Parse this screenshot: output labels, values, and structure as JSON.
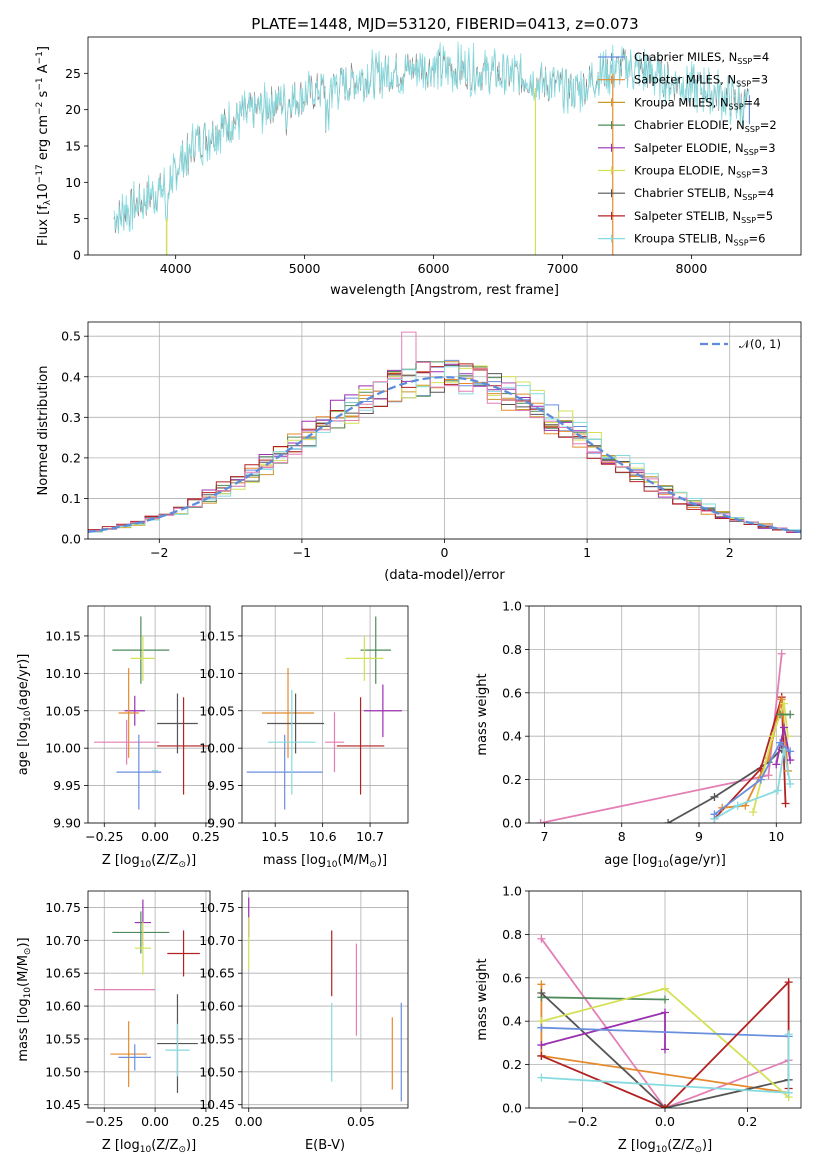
{
  "title": "PLATE=1448, MJD=53120, FIBERID=0413, z=0.073",
  "palette": {
    "Chabrier MILES": "#6a8fdd",
    "Salpeter MILES": "#e58a2d",
    "Kroupa MILES": "#c9982f",
    "Chabrier ELODIE": "#4f8a5b",
    "Salpeter ELODIE": "#9b30b0",
    "Kroupa ELODIE": "#d4e157",
    "Chabrier STELIB": "#555555",
    "Salpeter STELIB": "#b22222",
    "Kroupa STELIB": "#86dbe0",
    "extra_pink": "#e37fb5",
    "reference": "#5b8ddb"
  },
  "chart_data": [
    {
      "type": "line",
      "title": "PLATE=1448, MJD=53120, FIBERID=0413, z=0.073",
      "xlabel": "wavelength [Angstrom, rest frame]",
      "ylabel_parts": [
        "Flux [f",
        "λ",
        "10",
        "−17",
        " erg cm",
        "−2",
        " s",
        "−1",
        " A",
        "−1",
        "]"
      ],
      "xlim": [
        3320,
        8850
      ],
      "ylim": [
        0,
        30
      ],
      "xticks": [
        "4000",
        "5000",
        "6000",
        "7000",
        "8000"
      ],
      "yticks": [
        "0",
        "5",
        "10",
        "15",
        "20",
        "25"
      ],
      "legend_position": "upper right",
      "legend": [
        {
          "base": "Chabrier MILES, N",
          "sub": "SSP",
          "val": "=4"
        },
        {
          "base": "Salpeter MILES, N",
          "sub": "SSP",
          "val": "=3"
        },
        {
          "base": "Kroupa MILES, N",
          "sub": "SSP",
          "val": "=4"
        },
        {
          "base": "Chabrier ELODIE, N",
          "sub": "SSP",
          "val": "=2"
        },
        {
          "base": "Salpeter ELODIE, N",
          "sub": "SSP",
          "val": "=3"
        },
        {
          "base": "Kroupa ELODIE, N",
          "sub": "SSP",
          "val": "=3"
        },
        {
          "base": "Chabrier STELIB, N",
          "sub": "SSP",
          "val": "=4"
        },
        {
          "base": "Salpeter STELIB, N",
          "sub": "SSP",
          "val": "=5"
        },
        {
          "base": "Kroupa STELIB, N",
          "sub": "SSP",
          "val": "=6"
        }
      ],
      "spectrum_continuum": [
        [
          3520,
          5
        ],
        [
          3700,
          7
        ],
        [
          3900,
          9
        ],
        [
          4000,
          12
        ],
        [
          4150,
          15.5
        ],
        [
          4300,
          17
        ],
        [
          4500,
          19
        ],
        [
          4700,
          20.5
        ],
        [
          4900,
          21.5
        ],
        [
          5100,
          22.5
        ],
        [
          5300,
          23.5
        ],
        [
          5500,
          24.5
        ],
        [
          5700,
          25.3
        ],
        [
          5900,
          25.8
        ],
        [
          6100,
          25.7
        ],
        [
          6300,
          25.4
        ],
        [
          6500,
          25.0
        ],
        [
          6700,
          24.4
        ],
        [
          6900,
          23.5
        ],
        [
          7100,
          22.5
        ],
        [
          7300,
          25.0
        ],
        [
          7500,
          26.0
        ],
        [
          7700,
          25.0
        ],
        [
          7900,
          23.5
        ],
        [
          8100,
          22.8
        ],
        [
          8300,
          21.5
        ],
        [
          8450,
          20.5
        ]
      ]
    },
    {
      "type": "area",
      "xlabel": "(data-model)/error",
      "ylabel": "Normed distribution",
      "xlim": [
        -2.5,
        2.5
      ],
      "ylim": [
        0,
        0.535
      ],
      "xticks": [
        "−2",
        "−1",
        "0",
        "1",
        "2"
      ],
      "yticks": [
        "0.0",
        "0.1",
        "0.2",
        "0.3",
        "0.4",
        "0.5"
      ],
      "legend": "𝒩(0, 1)",
      "legend_position": "upper right",
      "bin_width": 0.1
    },
    {
      "type": "scatter",
      "xlabel": "Z [log10(Z/Z⊙)]",
      "xlabel_parts": [
        "Z [log",
        "10",
        "(Z/Z",
        "⊙",
        ")]"
      ],
      "ylabel_parts": [
        "age  [log",
        "10",
        "(age/yr)]"
      ],
      "xlim": [
        -0.33,
        0.27
      ],
      "ylim": [
        9.9,
        10.19
      ],
      "xticks": [
        -0.25,
        0.0,
        0.25
      ],
      "xticklabels": [
        "−0.25",
        "0.00",
        "0.25"
      ],
      "yticks": [
        9.9,
        9.95,
        10.0,
        10.05,
        10.1,
        10.15
      ],
      "yticklabels": [
        "9.90",
        "9.95",
        "10.00",
        "10.05",
        "10.10",
        "10.15"
      ],
      "points": [
        {
          "c": "Chabrier ELODIE",
          "x": -0.07,
          "y": 10.131,
          "xe": 0.14,
          "ye": 0.045
        },
        {
          "c": "Kroupa ELODIE",
          "x": -0.06,
          "y": 10.12,
          "xe": 0.06,
          "ye": 0.03
        },
        {
          "c": "Salpeter ELODIE",
          "x": -0.1,
          "y": 10.05,
          "xe": 0.05,
          "ye": 0.02
        },
        {
          "c": "Salpeter MILES",
          "x": -0.13,
          "y": 10.047,
          "xe": 0.05,
          "ye": 0.06
        },
        {
          "c": "Chabrier STELIB",
          "x": 0.11,
          "y": 10.033,
          "xe": 0.1,
          "ye": 0.04
        },
        {
          "c": "extra_pink",
          "x": -0.14,
          "y": 10.008,
          "xe": 0.16,
          "ye": 0.03
        },
        {
          "c": "Salpeter STELIB",
          "x": 0.14,
          "y": 10.003,
          "xe": 0.13,
          "ye": 0.065
        },
        {
          "c": "Chabrier MILES",
          "x": -0.08,
          "y": 9.968,
          "xe": 0.11,
          "ye": 0.05
        },
        {
          "c": "Kroupa STELIB",
          "x": 0.0,
          "y": 9.97,
          "xe": 0.015,
          "ye": 0.0
        }
      ]
    },
    {
      "type": "scatter",
      "xlabel_parts": [
        "mass [log",
        "10",
        "(M/M",
        "⊙",
        ")]"
      ],
      "xlim": [
        10.43,
        10.78
      ],
      "ylim": [
        9.9,
        10.19
      ],
      "xticks": [
        10.5,
        10.6,
        10.7
      ],
      "xticklabels": [
        "10.5",
        "10.6",
        "10.7"
      ],
      "yticks": [
        9.9,
        9.95,
        10.0,
        10.05,
        10.1,
        10.15
      ],
      "yticklabels": [
        "9.90",
        "9.95",
        "10.00",
        "10.05",
        "10.10",
        "10.15"
      ],
      "points": [
        {
          "c": "Chabrier ELODIE",
          "x": 10.712,
          "y": 10.131,
          "xe": 0.032,
          "ye": 0.045
        },
        {
          "c": "Kroupa ELODIE",
          "x": 10.688,
          "y": 10.12,
          "xe": 0.04,
          "ye": 0.03
        },
        {
          "c": "Salpeter ELODIE",
          "x": 10.727,
          "y": 10.05,
          "xe": 0.04,
          "ye": 0.035
        },
        {
          "c": "Salpeter MILES",
          "x": 10.527,
          "y": 10.047,
          "xe": 0.055,
          "ye": 0.06
        },
        {
          "c": "Chabrier STELIB",
          "x": 10.543,
          "y": 10.033,
          "xe": 0.06,
          "ye": 0.04
        },
        {
          "c": "extra_pink",
          "x": 10.625,
          "y": 10.008,
          "xe": 0.02,
          "ye": 0.04
        },
        {
          "c": "Salpeter STELIB",
          "x": 10.68,
          "y": 10.003,
          "xe": 0.05,
          "ye": 0.065
        },
        {
          "c": "Chabrier MILES",
          "x": 10.52,
          "y": 9.968,
          "xe": 0.08,
          "ye": 0.05
        },
        {
          "c": "Kroupa STELIB",
          "x": 10.535,
          "y": 10.008,
          "xe": 0.05,
          "ye": 0.07
        }
      ]
    },
    {
      "type": "line",
      "xlabel_parts": [
        "age  [log",
        "10",
        "(age/yr)]"
      ],
      "ylabel": "mass weight",
      "xlim": [
        6.8,
        10.32
      ],
      "ylim": [
        0,
        1.0
      ],
      "xticks": [
        7,
        8,
        9,
        10
      ],
      "xticklabels": [
        "7",
        "8",
        "9",
        "10"
      ],
      "yticks": [
        0,
        0.2,
        0.4,
        0.6,
        0.8,
        1.0
      ],
      "yticklabels": [
        "0.0",
        "0.2",
        "0.4",
        "0.6",
        "0.8",
        "1.0"
      ],
      "series": [
        {
          "c": "extra_pink",
          "pts": [
            [
              6.95,
              0.0
            ],
            [
              9.9,
              0.22
            ],
            [
              10.07,
              0.78
            ]
          ]
        },
        {
          "c": "Chabrier STELIB",
          "pts": [
            [
              8.6,
              0.0
            ],
            [
              9.2,
              0.12
            ],
            [
              9.9,
              0.28
            ],
            [
              10.07,
              0.34
            ]
          ]
        },
        {
          "c": "Salpeter STELIB",
          "pts": [
            [
              9.2,
              0.02
            ],
            [
              9.8,
              0.25
            ],
            [
              10.07,
              0.58
            ],
            [
              10.12,
              0.09
            ]
          ]
        },
        {
          "c": "Salpeter MILES",
          "pts": [
            [
              9.3,
              0.07
            ],
            [
              9.6,
              0.08
            ],
            [
              9.9,
              0.3
            ],
            [
              10.07,
              0.57
            ],
            [
              10.15,
              0.24
            ]
          ]
        },
        {
          "c": "Kroupa ELODIE",
          "pts": [
            [
              9.7,
              0.05
            ],
            [
              9.95,
              0.4
            ],
            [
              10.1,
              0.55
            ],
            [
              10.15,
              0.4
            ]
          ]
        },
        {
          "c": "Chabrier ELODIE",
          "pts": [
            [
              10.05,
              0.5
            ],
            [
              10.18,
              0.5
            ]
          ]
        },
        {
          "c": "Salpeter ELODIE",
          "pts": [
            [
              10.0,
              0.27
            ],
            [
              10.1,
              0.44
            ],
            [
              10.18,
              0.29
            ]
          ]
        },
        {
          "c": "Kroupa STELIB",
          "pts": [
            [
              9.2,
              0.02
            ],
            [
              9.5,
              0.08
            ],
            [
              10.02,
              0.15
            ],
            [
              10.1,
              0.34
            ],
            [
              10.18,
              0.18
            ]
          ]
        },
        {
          "c": "Chabrier MILES",
          "pts": [
            [
              9.2,
              0.04
            ],
            [
              9.8,
              0.2
            ],
            [
              10.05,
              0.37
            ],
            [
              10.18,
              0.33
            ]
          ]
        }
      ]
    },
    {
      "type": "scatter",
      "xlabel_parts": [
        "Z [log",
        "10",
        "(Z/Z",
        "⊙",
        ")]"
      ],
      "ylabel_parts": [
        "mass [log",
        "10",
        "(M/M",
        "⊙",
        ")]"
      ],
      "xlim": [
        -0.33,
        0.27
      ],
      "ylim": [
        10.445,
        10.775
      ],
      "xticks": [
        -0.25,
        0.0,
        0.25
      ],
      "xticklabels": [
        "−0.25",
        "0.00",
        "0.25"
      ],
      "yticks": [
        10.45,
        10.5,
        10.55,
        10.6,
        10.65,
        10.7,
        10.75
      ],
      "yticklabels": [
        "10.45",
        "10.50",
        "10.55",
        "10.60",
        "10.65",
        "10.70",
        "10.75"
      ],
      "points": [
        {
          "c": "Salpeter ELODIE",
          "x": -0.06,
          "y": 10.727,
          "xe": 0.04,
          "ye": 0.035
        },
        {
          "c": "Chabrier ELODIE",
          "x": -0.07,
          "y": 10.712,
          "xe": 0.14,
          "ye": 0.032
        },
        {
          "c": "Kroupa ELODIE",
          "x": -0.06,
          "y": 10.688,
          "xe": 0.04,
          "ye": 0.04
        },
        {
          "c": "Salpeter STELIB",
          "x": 0.14,
          "y": 10.68,
          "xe": 0.08,
          "ye": 0.035
        },
        {
          "c": "extra_pink",
          "x": -0.15,
          "y": 10.625,
          "xe": 0.15,
          "ye": 0.0
        },
        {
          "c": "Chabrier STELIB",
          "x": 0.11,
          "y": 10.543,
          "xe": 0.1,
          "ye": 0.075
        },
        {
          "c": "Kroupa STELIB",
          "x": 0.11,
          "y": 10.533,
          "xe": 0.06,
          "ye": 0.04
        },
        {
          "c": "Salpeter MILES",
          "x": -0.13,
          "y": 10.527,
          "xe": 0.09,
          "ye": 0.05
        },
        {
          "c": "Chabrier MILES",
          "x": -0.1,
          "y": 10.522,
          "xe": 0.08,
          "ye": 0.02
        }
      ]
    },
    {
      "type": "scatter",
      "xlabel": "E(B-V)",
      "xlim": [
        -0.003,
        0.071
      ],
      "ylim": [
        10.445,
        10.775
      ],
      "xticks": [
        0.0,
        0.05
      ],
      "xticklabels": [
        "0.00",
        "0.05"
      ],
      "yticks": [
        10.45,
        10.5,
        10.55,
        10.6,
        10.65,
        10.7,
        10.75
      ],
      "yticklabels": [
        "10.45",
        "10.50",
        "10.55",
        "10.60",
        "10.65",
        "10.70",
        "10.75"
      ],
      "points": [
        {
          "c": "Salpeter ELODIE",
          "x": 0.0,
          "y": 10.735,
          "xe": 0,
          "ye": 0.03
        },
        {
          "c": "Kroupa ELODIE",
          "x": 0.0,
          "y": 10.695,
          "xe": 0,
          "ye": 0.04
        },
        {
          "c": "Salpeter STELIB",
          "x": 0.037,
          "y": 10.665,
          "xe": 0,
          "ye": 0.05
        },
        {
          "c": "extra_pink",
          "x": 0.048,
          "y": 10.625,
          "xe": 0,
          "ye": 0.07
        },
        {
          "c": "Kroupa STELIB",
          "x": 0.037,
          "y": 10.545,
          "xe": 0,
          "ye": 0.06
        },
        {
          "c": "Salpeter MILES",
          "x": 0.064,
          "y": 10.528,
          "xe": 0,
          "ye": 0.055
        },
        {
          "c": "Chabrier MILES",
          "x": 0.068,
          "y": 10.53,
          "xe": 0,
          "ye": 0.075
        }
      ]
    },
    {
      "type": "line",
      "xlabel_parts": [
        "Z [log",
        "10",
        "(Z/Z",
        "⊙",
        ")]"
      ],
      "ylabel": "mass weight",
      "xlim": [
        -0.33,
        0.33
      ],
      "ylim": [
        0,
        1.0
      ],
      "xticks": [
        -0.2,
        0.0,
        0.2
      ],
      "xticklabels": [
        "−0.2",
        "0.0",
        "0.2"
      ],
      "yticks": [
        0,
        0.2,
        0.4,
        0.6,
        0.8,
        1.0
      ],
      "yticklabels": [
        "0.0",
        "0.2",
        "0.4",
        "0.6",
        "0.8",
        "1.0"
      ],
      "series": [
        {
          "c": "extra_pink",
          "pts": [
            [
              -0.3,
              0.78
            ],
            [
              0.0,
              0.0
            ],
            [
              0.3,
              0.22
            ]
          ]
        },
        {
          "c": "Salpeter MILES",
          "pts": [
            [
              -0.3,
              0.57
            ],
            [
              -0.3,
              0.24
            ],
            [
              0.3,
              0.07
            ]
          ]
        },
        {
          "c": "Chabrier ELODIE",
          "pts": [
            [
              -0.3,
              0.51
            ],
            [
              0.0,
              0.5
            ]
          ]
        },
        {
          "c": "Chabrier STELIB",
          "pts": [
            [
              -0.3,
              0.53
            ],
            [
              0.0,
              0.0
            ],
            [
              0.3,
              0.13
            ]
          ]
        },
        {
          "c": "Kroupa ELODIE",
          "pts": [
            [
              -0.3,
              0.4
            ],
            [
              0.0,
              0.55
            ],
            [
              0.3,
              0.05
            ]
          ]
        },
        {
          "c": "Salpeter ELODIE",
          "pts": [
            [
              -0.3,
              0.29
            ],
            [
              0.0,
              0.44
            ],
            [
              0.0,
              0.27
            ]
          ]
        },
        {
          "c": "Chabrier MILES",
          "pts": [
            [
              -0.3,
              0.37
            ],
            [
              0.3,
              0.33
            ]
          ]
        },
        {
          "c": "Salpeter STELIB",
          "pts": [
            [
              -0.3,
              0.24
            ],
            [
              0.0,
              0.0
            ],
            [
              0.3,
              0.58
            ],
            [
              0.3,
              0.09
            ]
          ]
        },
        {
          "c": "Kroupa STELIB",
          "pts": [
            [
              -0.3,
              0.14
            ],
            [
              0.3,
              0.07
            ],
            [
              0.3,
              0.34
            ]
          ]
        }
      ]
    }
  ]
}
